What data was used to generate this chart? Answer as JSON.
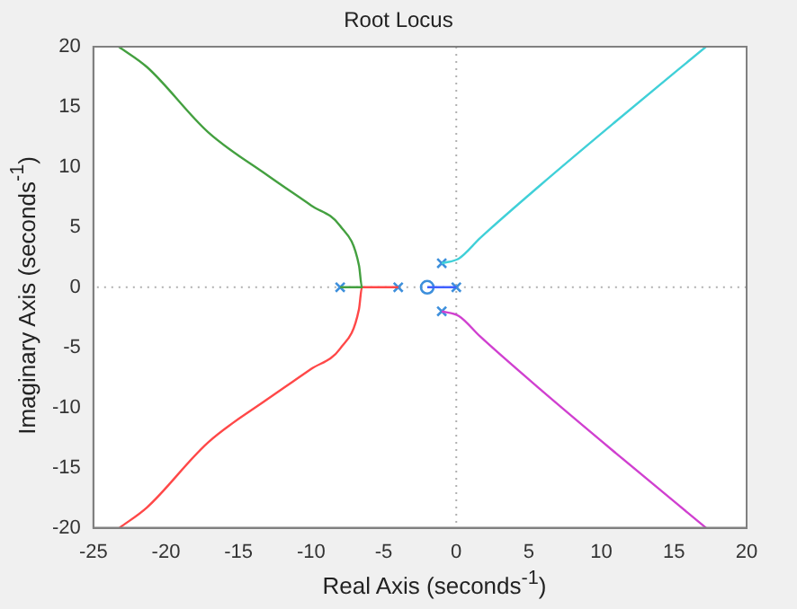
{
  "chart_data": {
    "type": "line",
    "title": "Root Locus",
    "xlabel": "Real Axis (seconds$^{-1}$)",
    "ylabel": "Imaginary Axis (seconds$^{-1}$)",
    "xlim": [
      -25,
      20
    ],
    "xticks": [
      -25,
      -20,
      -15,
      -10,
      -5,
      0,
      5,
      10,
      15,
      20
    ],
    "ylim": [
      -20,
      20
    ],
    "yticks": [
      -20,
      -15,
      -10,
      -5,
      0,
      5,
      10,
      15,
      20
    ],
    "grid": false,
    "marker": "none",
    "line_style": "solid",
    "ref_lines": [
      {
        "axis": "x",
        "value": 0,
        "color": "#b0b0b0",
        "line_style": "dotted"
      },
      {
        "axis": "y",
        "value": 0,
        "color": "#b0b0b0",
        "line_style": "dotted"
      }
    ],
    "series": [
      {
        "type": "line",
        "color": "#44a040",
        "x": [
          -8,
          -6.5,
          -6.7,
          -8,
          -10,
          -13,
          -17.1,
          -21.3,
          -23.25
        ],
        "values": [
          0,
          0,
          1.8,
          5.1,
          6.8,
          9.3,
          12.9,
          18.3,
          20
        ]
      },
      {
        "type": "line",
        "color": "#ff4848",
        "x": [
          -4,
          -6.5,
          -6.7,
          -8,
          -10,
          -13,
          -17.1,
          -21.3,
          -23.2
        ],
        "values": [
          0,
          0,
          -1.8,
          -5.1,
          -6.8,
          -9.3,
          -12.9,
          -18.3,
          -20
        ]
      },
      {
        "type": "line",
        "color": "#4060ff",
        "x": [
          0,
          -2
        ],
        "values": [
          0,
          0
        ]
      },
      {
        "type": "line",
        "color": "#40d0d8",
        "x": [
          -1,
          0.19,
          1.65,
          5.8,
          11,
          17.2
        ],
        "values": [
          2,
          2.4,
          4.1,
          8.5,
          13.8,
          20
        ]
      },
      {
        "type": "line",
        "color": "#d040d0",
        "x": [
          -1,
          0.19,
          1.65,
          5.8,
          11,
          17.2
        ],
        "values": [
          -2,
          -2.4,
          -4.1,
          -8.5,
          -13.8,
          -20
        ]
      },
      {
        "type": "scatter",
        "marker": "cross",
        "color": "#3d8fdc",
        "x": [
          -8,
          -4,
          -1,
          -1,
          0
        ],
        "values": [
          0,
          0,
          2,
          -2,
          0
        ]
      },
      {
        "type": "scatter",
        "marker": "circle",
        "color": "#3d8fdc",
        "x": [
          -2
        ],
        "values": [
          0
        ]
      }
    ]
  }
}
